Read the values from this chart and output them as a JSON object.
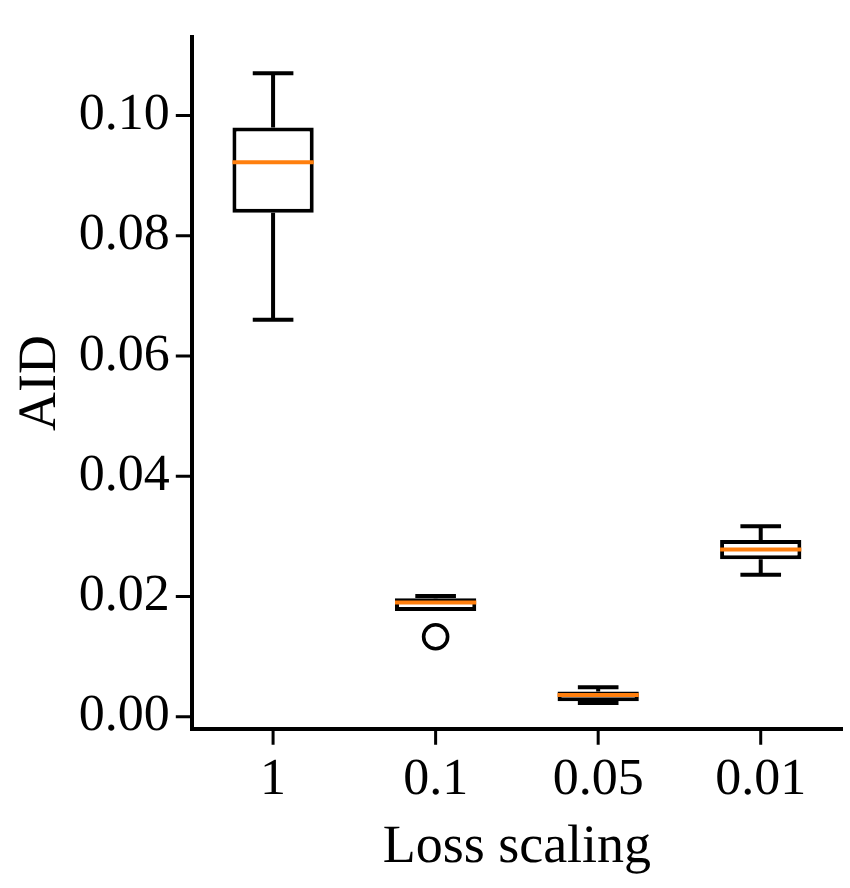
{
  "chart_data": {
    "type": "box",
    "xlabel": "Loss scaling",
    "ylabel": "AID",
    "categories": [
      "1",
      "0.1",
      "0.05",
      "0.01"
    ],
    "boxes": [
      {
        "low": 0.066,
        "q1": 0.0838,
        "median": 0.0922,
        "q3": 0.098,
        "high": 0.107
      },
      {
        "low": 0.0176,
        "q1": 0.0176,
        "median": 0.019,
        "q3": 0.0197,
        "high": 0.0201,
        "outliers": [
          0.0133
        ]
      },
      {
        "low": 0.0023,
        "q1": 0.0026,
        "median": 0.0036,
        "q3": 0.0042,
        "high": 0.0049
      },
      {
        "low": 0.0236,
        "q1": 0.0262,
        "median": 0.0278,
        "q3": 0.0294,
        "high": 0.0317
      }
    ],
    "color": "#000000",
    "ylim": [
      -0.002,
      0.113
    ],
    "yticks": [
      {
        "value": 0,
        "label": "0.00"
      },
      {
        "value": 0.02,
        "label": "0.02"
      },
      {
        "value": 0.04,
        "label": "0.04"
      },
      {
        "value": 0.06,
        "label": "0.06"
      },
      {
        "value": 0.08,
        "label": "0.08"
      },
      {
        "value": 0.1,
        "label": "0.10"
      }
    ],
    "grid": false,
    "legend": false
  }
}
